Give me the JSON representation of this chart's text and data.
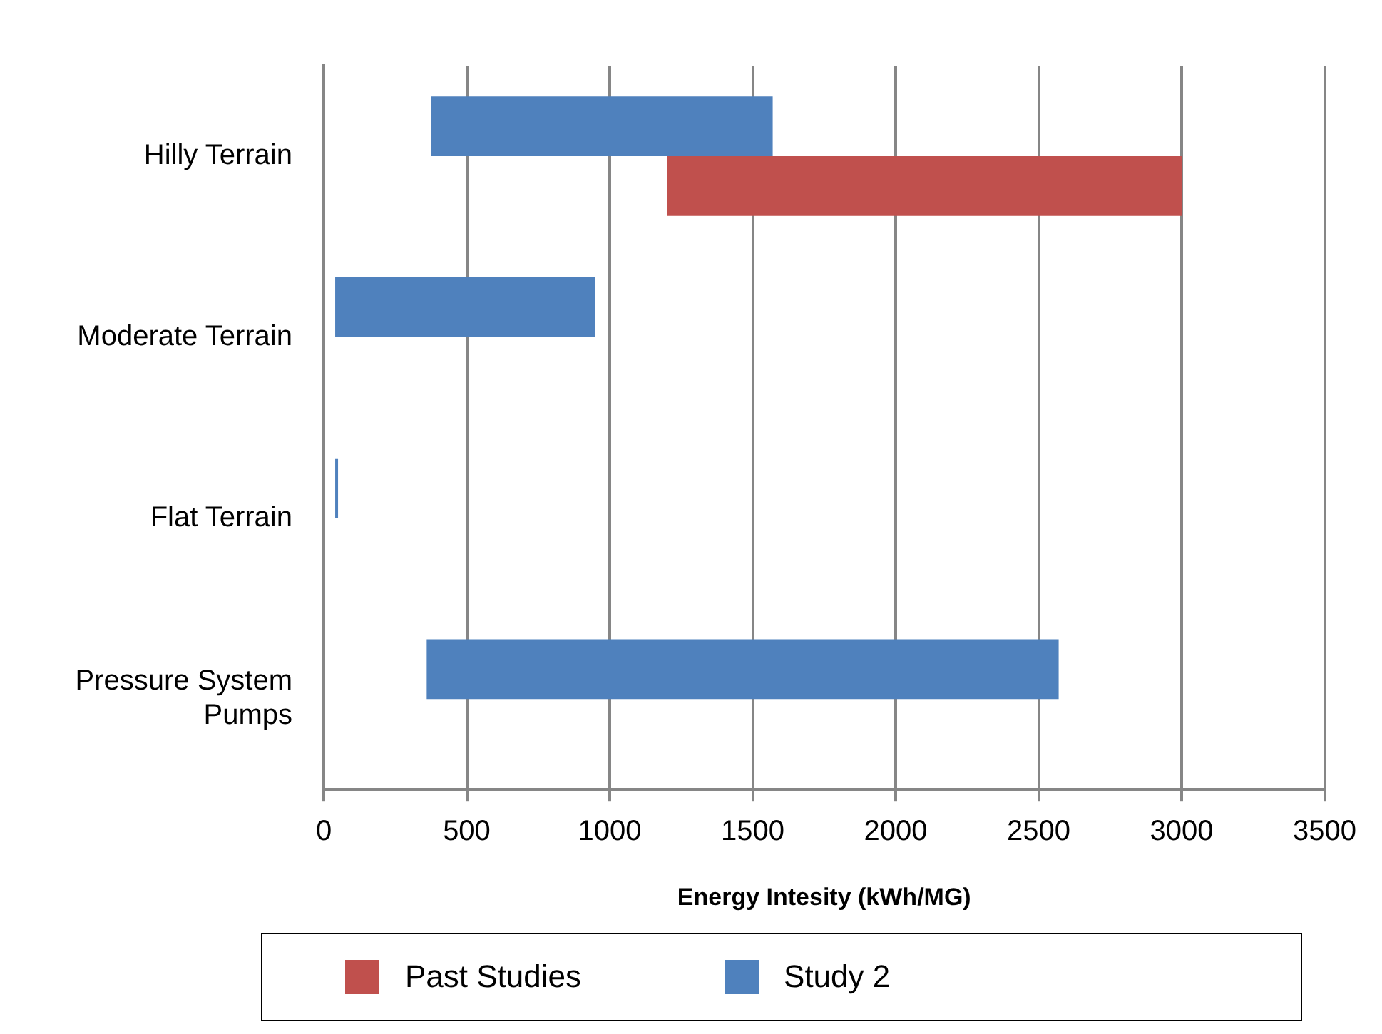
{
  "chart_data": {
    "type": "bar",
    "orientation": "horizontal",
    "xlabel": "Energy Intesity (kWh/MG)",
    "categories": [
      "Hilly Terrain",
      "Moderate Terrain",
      "Flat Terrain",
      "Pressure System Pumps"
    ],
    "series": [
      {
        "name": "Past Studies",
        "color": "#c0504d",
        "base": [
          1200,
          null,
          null,
          null
        ],
        "values": [
          1800,
          null,
          null,
          null
        ]
      },
      {
        "name": "Study 2",
        "color": "#4f81bd",
        "base": [
          375,
          40,
          40,
          360
        ],
        "values": [
          1195,
          910,
          10,
          2210
        ]
      }
    ],
    "xlim": [
      0,
      3500
    ],
    "xticks": [
      0,
      500,
      1000,
      1500,
      2000,
      2500,
      3000,
      3500
    ],
    "grid": "x",
    "legend": "bottom"
  }
}
